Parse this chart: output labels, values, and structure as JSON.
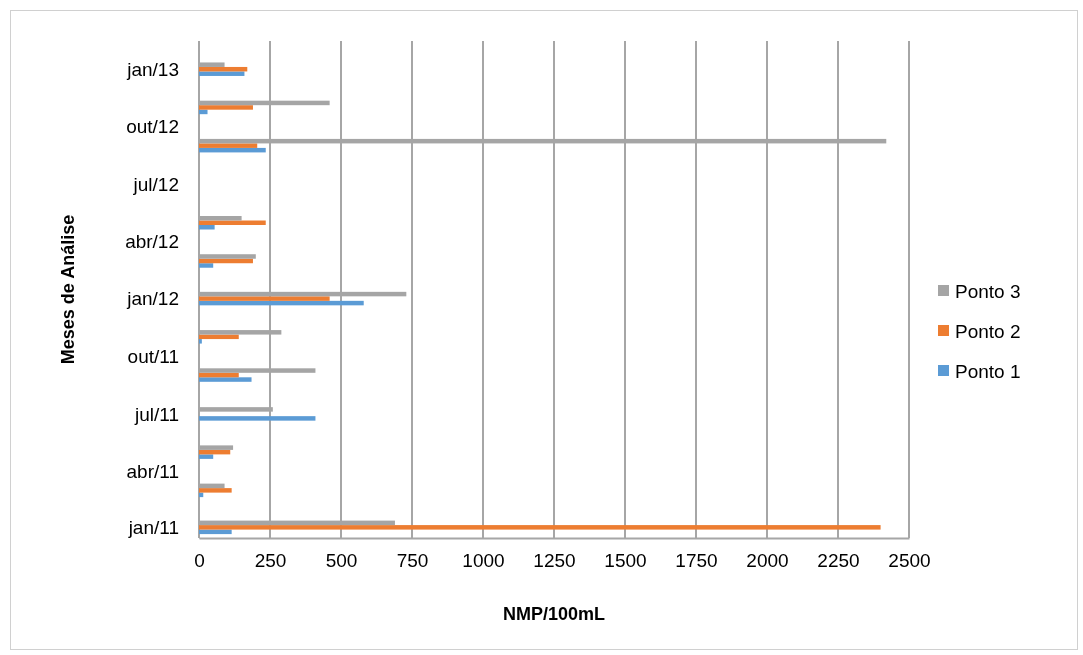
{
  "chart_data": {
    "type": "bar",
    "orientation": "horizontal",
    "xlabel": "NMP/100mL",
    "ylabel": "Meses de Análise",
    "x": [
      "2011-01",
      "2011-03",
      "2011-05",
      "2011-07",
      "2011-09",
      "2011-11",
      "2012-01",
      "2012-03",
      "2012-05",
      "2012-07",
      "2012-09",
      "2012-11",
      "2013-01"
    ],
    "series": [
      {
        "name": "Ponto 1",
        "color": "#5b9bd5",
        "values": [
          115,
          15,
          50,
          410,
          185,
          10,
          580,
          50,
          55,
          null,
          235,
          30,
          160
        ]
      },
      {
        "name": "Ponto 2",
        "color": "#ed7d31",
        "values": [
          2400,
          115,
          110,
          null,
          140,
          140,
          460,
          190,
          235,
          null,
          205,
          190,
          170
        ]
      },
      {
        "name": "Ponto 3",
        "color": "#a5a5a5",
        "values": [
          690,
          90,
          120,
          260,
          410,
          290,
          730,
          200,
          150,
          null,
          2420,
          460,
          90
        ]
      }
    ],
    "xlim": [
      0,
      2500
    ],
    "xticks": [
      0,
      250,
      500,
      750,
      1000,
      1250,
      1500,
      1750,
      2000,
      2250,
      2500
    ],
    "ylim": [
      "2010-12-15",
      "2013-02-15"
    ],
    "yticks": [
      {
        "value": "2011-01",
        "label": "jan/11"
      },
      {
        "value": "2011-04",
        "label": "abr/11"
      },
      {
        "value": "2011-07",
        "label": "jul/11"
      },
      {
        "value": "2011-10",
        "label": "out/11"
      },
      {
        "value": "2012-01",
        "label": "jan/12"
      },
      {
        "value": "2012-04",
        "label": "abr/12"
      },
      {
        "value": "2012-07",
        "label": "jul/12"
      },
      {
        "value": "2012-10",
        "label": "out/12"
      },
      {
        "value": "2013-01",
        "label": "jan/13"
      }
    ],
    "grid": "x",
    "legend": "right"
  }
}
